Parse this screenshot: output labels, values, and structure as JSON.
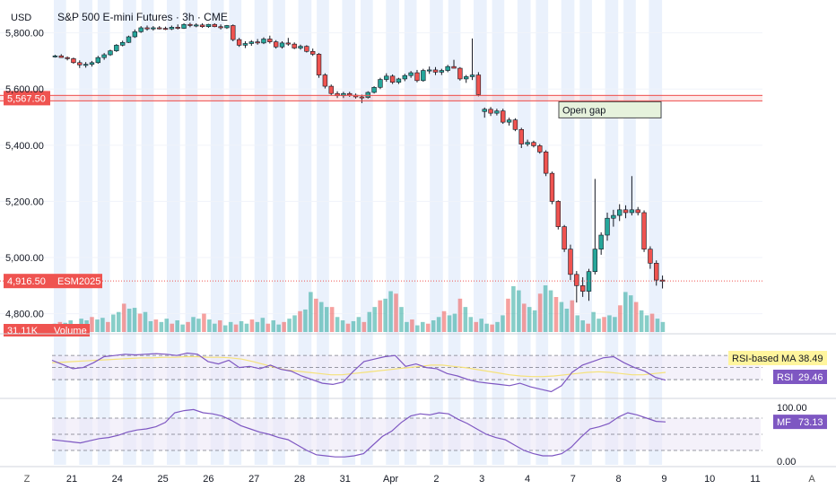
{
  "header": {
    "currency": "USD",
    "title": "S&P 500 E-mini Futures · 3h · CME"
  },
  "footer": {
    "left_icon_label": "Z",
    "right_icon_label": "A"
  },
  "colors": {
    "up": "#26a69a",
    "down": "#ef5350",
    "rsi": "#7e57c2",
    "rsi_ma": "#f5e27a",
    "mf": "#7e57c2",
    "level_line": "#ef5350",
    "session_shade": "#e8effc"
  },
  "chart_data": [
    {
      "type": "candlestick",
      "name": "price",
      "y_ticks": [
        "5,800.00",
        "5,600.00",
        "5,400.00",
        "5,200.00",
        "5,000.00",
        "4,800.00"
      ],
      "y_tick_values": [
        5800,
        5600,
        5400,
        5200,
        5000,
        4800
      ],
      "ylim": [
        4735,
        5885
      ],
      "x_ticks": [
        "21",
        "24",
        "25",
        "26",
        "27",
        "28",
        "31",
        "Apr",
        "2",
        "3",
        "4",
        "7",
        "8",
        "9",
        "10",
        "11"
      ],
      "session_count": 14,
      "level_line": {
        "value": 5567.5,
        "label": "5,567.50"
      },
      "last_price": {
        "value": 4916.5,
        "label": "4,916.50",
        "symbol": "ESM2025"
      },
      "annotation": {
        "text": "Open gap"
      },
      "candles": [
        [
          5716,
          5722,
          5712,
          5718
        ],
        [
          5718,
          5724,
          5712,
          5712
        ],
        [
          5712,
          5716,
          5702,
          5708
        ],
        [
          5708,
          5712,
          5690,
          5694
        ],
        [
          5694,
          5702,
          5675,
          5686
        ],
        [
          5686,
          5696,
          5676,
          5688
        ],
        [
          5688,
          5700,
          5680,
          5694
        ],
        [
          5694,
          5718,
          5690,
          5712
        ],
        [
          5712,
          5728,
          5704,
          5722
        ],
        [
          5722,
          5740,
          5718,
          5736
        ],
        [
          5736,
          5760,
          5732,
          5756
        ],
        [
          5756,
          5772,
          5752,
          5766
        ],
        [
          5766,
          5790,
          5764,
          5786
        ],
        [
          5786,
          5812,
          5782,
          5804
        ],
        [
          5804,
          5824,
          5800,
          5818
        ],
        [
          5818,
          5826,
          5808,
          5814
        ],
        [
          5814,
          5824,
          5808,
          5818
        ],
        [
          5818,
          5824,
          5812,
          5816
        ],
        [
          5816,
          5822,
          5810,
          5814
        ],
        [
          5814,
          5826,
          5810,
          5820
        ],
        [
          5820,
          5830,
          5812,
          5816
        ],
        [
          5816,
          5834,
          5814,
          5830
        ],
        [
          5830,
          5836,
          5820,
          5826
        ],
        [
          5826,
          5834,
          5820,
          5828
        ],
        [
          5828,
          5834,
          5818,
          5822
        ],
        [
          5822,
          5832,
          5818,
          5830
        ],
        [
          5830,
          5834,
          5820,
          5822
        ],
        [
          5822,
          5830,
          5812,
          5818
        ],
        [
          5818,
          5828,
          5814,
          5826
        ],
        [
          5826,
          5830,
          5770,
          5776
        ],
        [
          5776,
          5782,
          5750,
          5756
        ],
        [
          5756,
          5770,
          5746,
          5762
        ],
        [
          5762,
          5774,
          5754,
          5768
        ],
        [
          5768,
          5778,
          5758,
          5764
        ],
        [
          5764,
          5784,
          5760,
          5778
        ],
        [
          5778,
          5790,
          5762,
          5768
        ],
        [
          5768,
          5774,
          5744,
          5750
        ],
        [
          5750,
          5770,
          5744,
          5764
        ],
        [
          5764,
          5782,
          5754,
          5760
        ],
        [
          5760,
          5766,
          5742,
          5746
        ],
        [
          5746,
          5758,
          5740,
          5752
        ],
        [
          5752,
          5756,
          5730,
          5734
        ],
        [
          5734,
          5744,
          5718,
          5724
        ],
        [
          5724,
          5728,
          5640,
          5650
        ],
        [
          5650,
          5656,
          5602,
          5610
        ],
        [
          5610,
          5616,
          5578,
          5584
        ],
        [
          5584,
          5592,
          5568,
          5576
        ],
        [
          5576,
          5590,
          5568,
          5584
        ],
        [
          5584,
          5590,
          5572,
          5578
        ],
        [
          5578,
          5584,
          5566,
          5572
        ],
        [
          5572,
          5580,
          5550,
          5570
        ],
        [
          5570,
          5592,
          5566,
          5588
        ],
        [
          5588,
          5610,
          5584,
          5606
        ],
        [
          5606,
          5640,
          5600,
          5634
        ],
        [
          5634,
          5656,
          5626,
          5646
        ],
        [
          5646,
          5652,
          5618,
          5624
        ],
        [
          5624,
          5640,
          5618,
          5636
        ],
        [
          5636,
          5654,
          5628,
          5648
        ],
        [
          5648,
          5664,
          5640,
          5658
        ],
        [
          5658,
          5668,
          5624,
          5630
        ],
        [
          5630,
          5672,
          5626,
          5666
        ],
        [
          5666,
          5680,
          5654,
          5668
        ],
        [
          5668,
          5678,
          5650,
          5660
        ],
        [
          5660,
          5672,
          5650,
          5666
        ],
        [
          5666,
          5686,
          5660,
          5680
        ],
        [
          5680,
          5704,
          5674,
          5674
        ],
        [
          5674,
          5678,
          5630,
          5636
        ],
        [
          5636,
          5650,
          5622,
          5644
        ],
        [
          5644,
          5780,
          5632,
          5650
        ],
        [
          5650,
          5660,
          5574,
          5580
        ],
        [
          5520,
          5534,
          5498,
          5528
        ],
        [
          5528,
          5536,
          5504,
          5514
        ],
        [
          5514,
          5530,
          5506,
          5522
        ],
        [
          5522,
          5530,
          5476,
          5482
        ],
        [
          5482,
          5498,
          5470,
          5490
        ],
        [
          5490,
          5496,
          5450,
          5456
        ],
        [
          5456,
          5462,
          5390,
          5404
        ],
        [
          5404,
          5420,
          5396,
          5410
        ],
        [
          5410,
          5416,
          5392,
          5398
        ],
        [
          5398,
          5404,
          5370,
          5376
        ],
        [
          5376,
          5382,
          5290,
          5300
        ],
        [
          5300,
          5306,
          5190,
          5200
        ],
        [
          5200,
          5204,
          5100,
          5110
        ],
        [
          5110,
          5116,
          5020,
          5030
        ],
        [
          5030,
          5046,
          4920,
          4940
        ],
        [
          4940,
          4952,
          4840,
          4900
        ],
        [
          4900,
          4930,
          4860,
          4880
        ],
        [
          4880,
          4960,
          4846,
          4950
        ],
        [
          4950,
          5280,
          4940,
          5030
        ],
        [
          5030,
          5090,
          5010,
          5080
        ],
        [
          5080,
          5160,
          5060,
          5140
        ],
        [
          5140,
          5170,
          5110,
          5150
        ],
        [
          5150,
          5190,
          5130,
          5170
        ],
        [
          5170,
          5186,
          5140,
          5160
        ],
        [
          5160,
          5290,
          5150,
          5170
        ],
        [
          5170,
          5180,
          5150,
          5160
        ],
        [
          5160,
          5168,
          5020,
          5030
        ],
        [
          5030,
          5040,
          4960,
          4980
        ],
        [
          4980,
          4990,
          4900,
          4920
        ],
        [
          4920,
          4936,
          4890,
          4916
        ]
      ]
    },
    {
      "type": "bar",
      "name": "Volume",
      "legend_label": "Volume",
      "last_value_label": "31.11K",
      "values": [
        10,
        12,
        11,
        14,
        9,
        16,
        14,
        18,
        15,
        17,
        12,
        21,
        24,
        34,
        28,
        29,
        22,
        24,
        13,
        15,
        12,
        16,
        10,
        14,
        9,
        12,
        18,
        16,
        22,
        15,
        10,
        14,
        8,
        12,
        9,
        13,
        10,
        15,
        12,
        17,
        10,
        14,
        9,
        12,
        16,
        20,
        25,
        27,
        48,
        40,
        36,
        30,
        30,
        18,
        14,
        10,
        13,
        18,
        12,
        24,
        30,
        38,
        40,
        49,
        46,
        30,
        12,
        15,
        8,
        12,
        10,
        14,
        18,
        25,
        20,
        22,
        40,
        30,
        18,
        12,
        16,
        10,
        9,
        12,
        20,
        40,
        55,
        50,
        34,
        30,
        26,
        46,
        56,
        50,
        42,
        36,
        28,
        38,
        20,
        14,
        10,
        24,
        16,
        18,
        20,
        18,
        32,
        48,
        44,
        36,
        26,
        20,
        22,
        16,
        12
      ]
    },
    {
      "type": "line",
      "name": "RSI",
      "series": [
        {
          "name": "RSI-based MA",
          "label": "RSI-based MA",
          "last_value_label": "38.49",
          "values": [
            58,
            59,
            60,
            61,
            62,
            63,
            64,
            65,
            66,
            66,
            67,
            67,
            68,
            68,
            67,
            67,
            66,
            64,
            60,
            55,
            50,
            46,
            44,
            42,
            40,
            38,
            38,
            40,
            42,
            44,
            46,
            48,
            50,
            52,
            54,
            54,
            52,
            50,
            47,
            44,
            41,
            38,
            36,
            35,
            35,
            36,
            38,
            40,
            42,
            43,
            42,
            40,
            38,
            38,
            40,
            42
          ]
        },
        {
          "name": "RSI",
          "label": "RSI",
          "last_value_label": "29.46",
          "values": [
            62,
            55,
            48,
            50,
            58,
            68,
            70,
            72,
            71,
            72,
            73,
            72,
            70,
            74,
            72,
            60,
            56,
            62,
            50,
            52,
            48,
            54,
            47,
            44,
            36,
            30,
            24,
            22,
            26,
            44,
            60,
            64,
            68,
            70,
            52,
            56,
            50,
            48,
            40,
            36,
            30,
            26,
            24,
            22,
            20,
            24,
            18,
            14,
            10,
            20,
            42,
            54,
            60,
            66,
            68,
            58,
            50,
            44,
            34,
            29
          ]
        }
      ],
      "levels": [
        70,
        50,
        30
      ]
    },
    {
      "type": "line",
      "name": "MF",
      "series": [
        {
          "name": "MF",
          "label": "MF",
          "last_value_label": "73.13",
          "values": [
            40,
            38,
            36,
            34,
            38,
            42,
            44,
            48,
            54,
            58,
            60,
            64,
            72,
            90,
            94,
            96,
            90,
            88,
            84,
            76,
            66,
            60,
            54,
            50,
            44,
            40,
            30,
            20,
            12,
            10,
            8,
            8,
            10,
            14,
            30,
            46,
            56,
            72,
            84,
            88,
            86,
            90,
            88,
            78,
            70,
            60,
            50,
            44,
            40,
            30,
            20,
            14,
            10,
            10,
            14,
            26,
            44,
            60,
            64,
            70,
            82,
            90,
            86,
            80,
            74,
            73
          ]
        }
      ],
      "y_ticks": [
        "100.00",
        "0.00"
      ],
      "levels": [
        80,
        50,
        20
      ]
    }
  ]
}
